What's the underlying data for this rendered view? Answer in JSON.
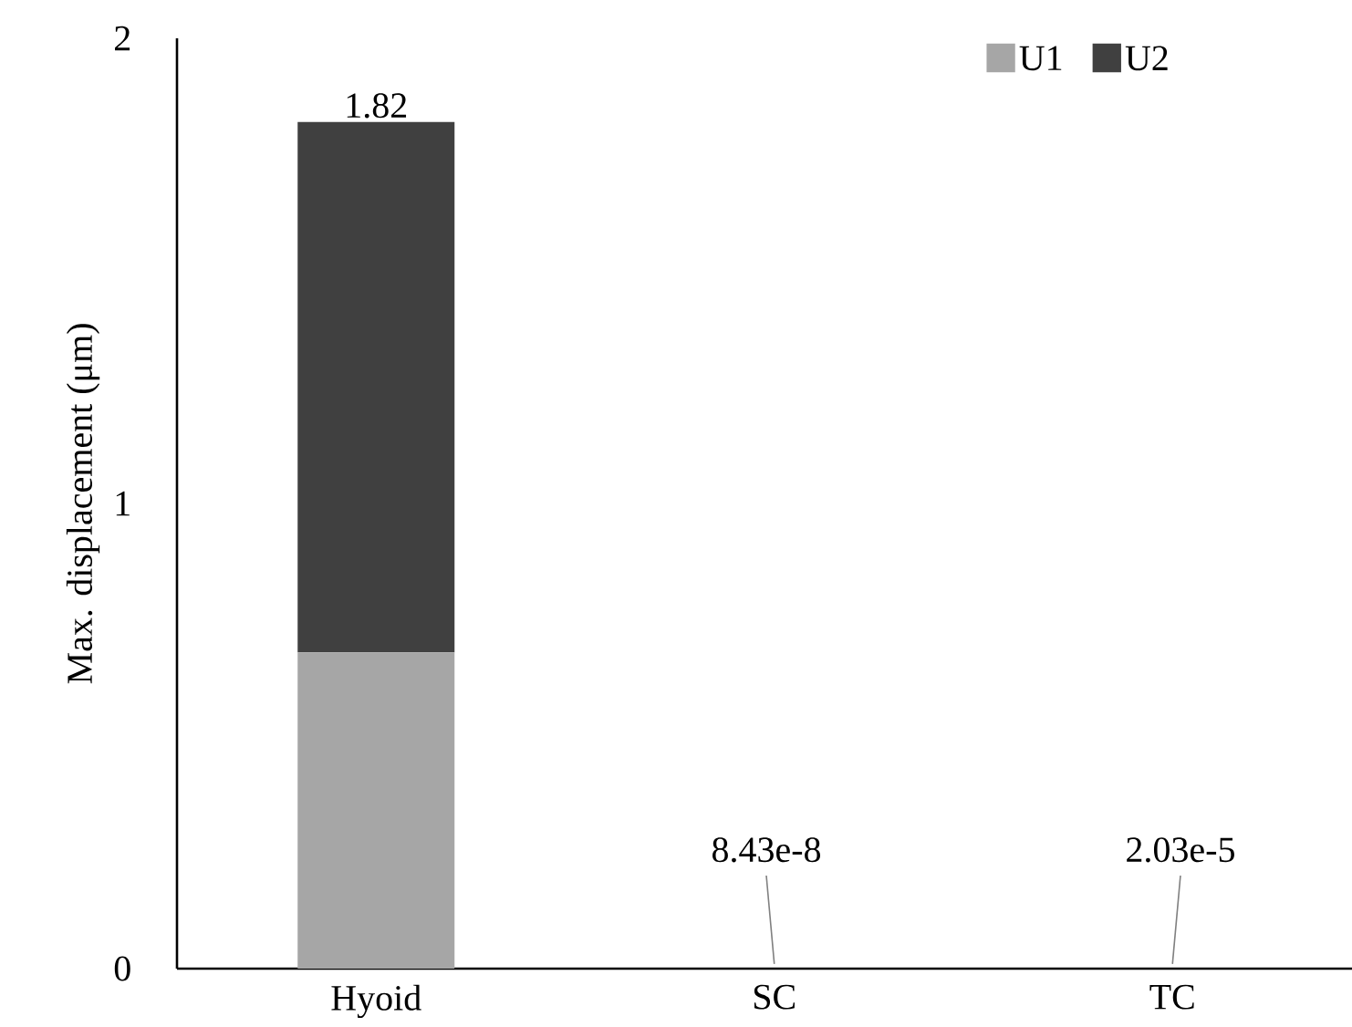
{
  "chart_data": {
    "type": "bar",
    "stacked": true,
    "ylabel": "Max. displacement (μm)",
    "categories": [
      "Hyoid",
      "SC",
      "TC"
    ],
    "series": [
      {
        "name": "U1",
        "color": "#a6a6a6",
        "values": [
          0.68,
          8.43e-08,
          2.03e-05
        ]
      },
      {
        "name": "U2",
        "color": "#404040",
        "values": [
          1.14,
          null,
          null
        ]
      }
    ],
    "totals": [
      "1.82",
      "8.43e-8",
      "2.03e-5"
    ],
    "ylim": [
      0,
      2
    ],
    "yticks": [
      0,
      1,
      2
    ],
    "legend": "top right"
  }
}
